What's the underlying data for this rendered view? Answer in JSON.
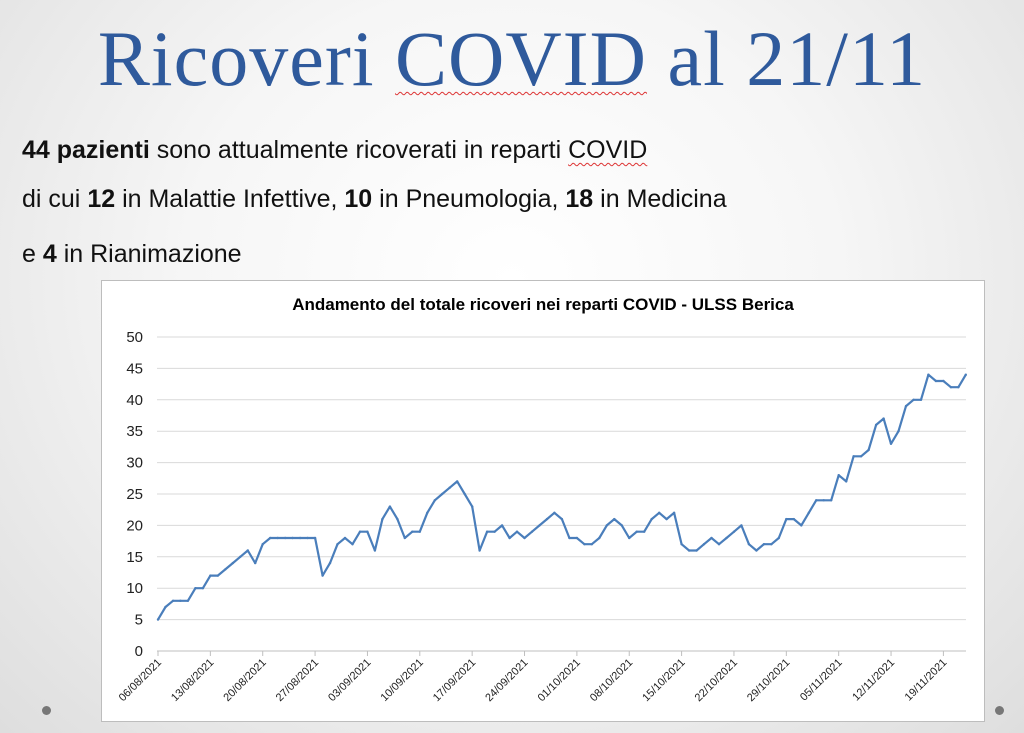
{
  "slide": {
    "title_a": "Ricoveri ",
    "title_b": "COVID",
    "title_c": " al 21/11"
  },
  "text": {
    "l1_a": "44 pazienti",
    "l1_b": " sono attualmente ricoverati in reparti ",
    "l1_c": "COVID",
    "l2_a": "di cui ",
    "l2_b": "12",
    "l2_c": " in Malattie Infettive, ",
    "l2_d": "10",
    "l2_e": " in Pneumologia, ",
    "l2_f": "18",
    "l2_g": " in Medicina",
    "l3_a": "e ",
    "l3_b": "4",
    "l3_c": " in Rianimazione"
  },
  "colors": {
    "title": "#2f5a9c",
    "line": "#4a7ebb",
    "grid": "#d9d9d9"
  },
  "chart_data": {
    "type": "line",
    "title": "Andamento del totale ricoveri nei reparti COVID - ULSS Berica",
    "xlabel": "",
    "ylabel": "",
    "ylim": [
      0,
      50
    ],
    "yticks": [
      0,
      5,
      10,
      15,
      20,
      25,
      30,
      35,
      40,
      45,
      50
    ],
    "grid": true,
    "legend": "none",
    "tick_labels": [
      "06/08/2021",
      "13/08/2021",
      "20/08/2021",
      "27/08/2021",
      "03/09/2021",
      "10/09/2021",
      "17/09/2021",
      "24/09/2021",
      "01/10/2021",
      "08/10/2021",
      "15/10/2021",
      "22/10/2021",
      "29/10/2021",
      "05/11/2021",
      "12/11/2021",
      "19/11/2021"
    ],
    "start_label": "06/08/2021",
    "end_label": "21/11/2021",
    "values": [
      5,
      7,
      8,
      8,
      8,
      10,
      10,
      12,
      12,
      13,
      14,
      15,
      16,
      14,
      17,
      18,
      18,
      18,
      18,
      18,
      18,
      18,
      12,
      14,
      17,
      18,
      17,
      19,
      19,
      16,
      21,
      23,
      21,
      18,
      19,
      19,
      22,
      24,
      25,
      26,
      27,
      25,
      23,
      16,
      19,
      19,
      20,
      18,
      19,
      18,
      19,
      20,
      21,
      22,
      21,
      18,
      18,
      17,
      17,
      18,
      20,
      21,
      20,
      18,
      19,
      19,
      21,
      22,
      21,
      22,
      17,
      16,
      16,
      17,
      18,
      17,
      18,
      19,
      20,
      17,
      16,
      17,
      17,
      18,
      21,
      21,
      20,
      22,
      24,
      24,
      24,
      28,
      27,
      31,
      31,
      32,
      36,
      37,
      33,
      35,
      39,
      40,
      40,
      44,
      43,
      43,
      42,
      42,
      44
    ]
  }
}
